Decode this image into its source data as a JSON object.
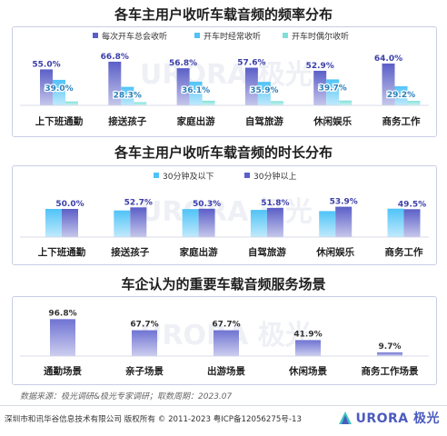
{
  "charts": {
    "freq": {
      "title": "各车主用户收听车载音频的频率分布",
      "series": [
        {
          "name": "每次开车总会收听",
          "color": "#5b5fc7",
          "values": [
            55.0,
            66.8,
            56.8,
            57.6,
            52.9,
            64.0
          ]
        },
        {
          "name": "开车时经常收听",
          "color": "#4fc3f7",
          "values": [
            39.0,
            28.3,
            36.1,
            35.9,
            39.7,
            29.2
          ]
        },
        {
          "name": "开车时偶尔收听",
          "color": "#7ee0d9",
          "values": [
            6.0,
            4.9,
            7.1,
            6.5,
            7.4,
            6.8
          ]
        }
      ],
      "categories": [
        "上下班通勤",
        "接送孩子",
        "家庭出游",
        "自驾旅游",
        "休闲娱乐",
        "商务工作"
      ]
    },
    "duration": {
      "title": "各车主用户收听车载音频的时长分布",
      "series": [
        {
          "name": "30分钟及以下",
          "color": "#4fc3f7",
          "values": [
            50.0,
            47.3,
            49.7,
            48.2,
            46.1,
            50.5
          ]
        },
        {
          "name": "30分钟以上",
          "color": "#5b5fc7",
          "values": [
            50.0,
            52.7,
            50.3,
            51.8,
            53.9,
            49.5
          ]
        }
      ],
      "categories": [
        "上下班通勤",
        "接送孩子",
        "家庭出游",
        "自驾旅游",
        "休闲娱乐",
        "商务工作"
      ]
    },
    "scenes": {
      "title": "车企认为的重要车载音频服务场景",
      "categories": [
        "通勤场景",
        "亲子场景",
        "出游场景",
        "休闲场景",
        "商务工作场景"
      ],
      "values": [
        96.8,
        67.7,
        67.7,
        41.9,
        9.7
      ],
      "color": "#6f73d2"
    }
  },
  "chart_data": [
    {
      "type": "bar",
      "title": "各车主用户收听车载音频的频率分布",
      "categories": [
        "上下班通勤",
        "接送孩子",
        "家庭出游",
        "自驾旅游",
        "休闲娱乐",
        "商务工作"
      ],
      "series": [
        {
          "name": "每次开车总会收听",
          "values": [
            55.0,
            66.8,
            56.8,
            57.6,
            52.9,
            64.0
          ]
        },
        {
          "name": "开车时经常收听",
          "values": [
            39.0,
            28.3,
            36.1,
            35.9,
            39.7,
            29.2
          ]
        },
        {
          "name": "开车时偶尔收听",
          "values": [
            6.0,
            4.9,
            7.1,
            6.5,
            7.4,
            6.8
          ]
        }
      ],
      "legend": "top-right"
    },
    {
      "type": "bar",
      "title": "各车主用户收听车载音频的时长分布",
      "categories": [
        "上下班通勤",
        "接送孩子",
        "家庭出游",
        "自驾旅游",
        "休闲娱乐",
        "商务工作"
      ],
      "series": [
        {
          "name": "30分钟及以下",
          "values": [
            50.0,
            47.3,
            49.7,
            48.2,
            46.1,
            50.5
          ]
        },
        {
          "name": "30分钟以上",
          "values": [
            50.0,
            52.7,
            50.3,
            51.8,
            53.9,
            49.5
          ]
        }
      ],
      "legend": "top-center"
    },
    {
      "type": "bar",
      "title": "车企认为的重要车载音频服务场景",
      "categories": [
        "通勤场景",
        "亲子场景",
        "出游场景",
        "休闲场景",
        "商务工作场景"
      ],
      "values": [
        96.8,
        67.7,
        67.7,
        41.9,
        9.7
      ]
    }
  ],
  "watermark": "URORA 极光",
  "source_note": "数据来源：极光调研&极光专家调研；取数周期：2023.07",
  "footer": {
    "copyright": "深圳市和讯华谷信息技术有限公司 版权所有 © 2011-2023 粤ICP备12056275号-13",
    "logo_text": "URORA 极光"
  }
}
